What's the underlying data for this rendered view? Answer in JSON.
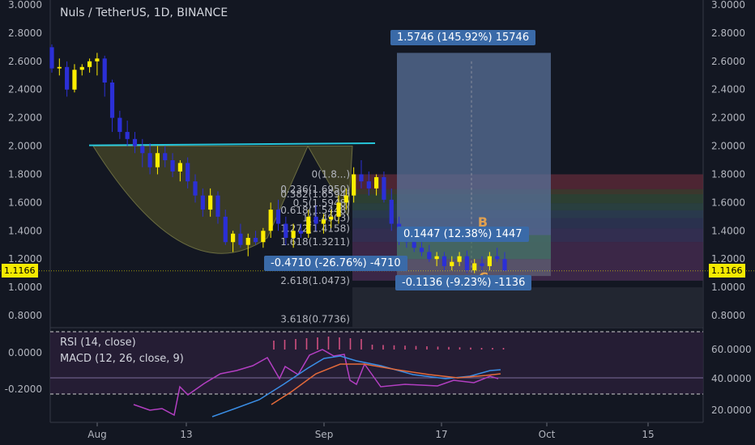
{
  "header": {
    "title": "Nuls / TetherUS, 1D, BINANCE"
  },
  "indicators": {
    "rsi_label": "RSI (14, close)",
    "macd_label": "MACD (12, 26, close, 9)"
  },
  "price_tag": "1.1166",
  "measure_boxes": {
    "top": "1.5746 (145.92%) 15746",
    "mid": "0.1447 (12.38%) 1447",
    "left": "-0.4710 (-26.76%) -4710",
    "bottom": "-0.1136 (-9.23%) -1136"
  },
  "pattern_labels": {
    "b": "B",
    "c": "C"
  },
  "chart_data": {
    "type": "candlestick",
    "title": "Nuls / TetherUS, 1D, BINANCE",
    "ylim": [
      0.7,
      3.0
    ],
    "y_ticks": [
      "3.0000",
      "2.8000",
      "2.6000",
      "2.4000",
      "2.2000",
      "2.0000",
      "1.8000",
      "1.6000",
      "1.4000",
      "1.2000",
      "1.0000",
      "0.8000"
    ],
    "x_ticks": [
      "Aug",
      "13",
      "Sep",
      "17",
      "Oct",
      "15"
    ],
    "last_price": 1.1166,
    "candles": [
      [
        2.7,
        2.72,
        2.52,
        2.55
      ],
      [
        2.55,
        2.62,
        2.5,
        2.56
      ],
      [
        2.56,
        2.6,
        2.35,
        2.4
      ],
      [
        2.4,
        2.58,
        2.38,
        2.54
      ],
      [
        2.54,
        2.58,
        2.5,
        2.56
      ],
      [
        2.56,
        2.62,
        2.52,
        2.6
      ],
      [
        2.6,
        2.66,
        2.5,
        2.62
      ],
      [
        2.62,
        2.64,
        2.35,
        2.45
      ],
      [
        2.45,
        2.47,
        2.1,
        2.2
      ],
      [
        2.2,
        2.25,
        2.05,
        2.1
      ],
      [
        2.1,
        2.18,
        2.0,
        2.05
      ],
      [
        2.05,
        2.1,
        1.95,
        2.0
      ],
      [
        2.0,
        2.05,
        1.85,
        1.95
      ],
      [
        1.95,
        2.02,
        1.8,
        1.85
      ],
      [
        1.85,
        2.0,
        1.8,
        1.95
      ],
      [
        1.95,
        2.0,
        1.85,
        1.9
      ],
      [
        1.9,
        1.95,
        1.78,
        1.82
      ],
      [
        1.82,
        1.9,
        1.75,
        1.88
      ],
      [
        1.88,
        1.92,
        1.7,
        1.75
      ],
      [
        1.75,
        1.8,
        1.6,
        1.65
      ],
      [
        1.65,
        1.7,
        1.5,
        1.55
      ],
      [
        1.55,
        1.7,
        1.5,
        1.65
      ],
      [
        1.65,
        1.68,
        1.45,
        1.5
      ],
      [
        1.5,
        1.55,
        1.3,
        1.32
      ],
      [
        1.32,
        1.4,
        1.25,
        1.38
      ],
      [
        1.38,
        1.45,
        1.28,
        1.3
      ],
      [
        1.3,
        1.38,
        1.22,
        1.35
      ],
      [
        1.35,
        1.4,
        1.3,
        1.32
      ],
      [
        1.32,
        1.42,
        1.28,
        1.4
      ],
      [
        1.4,
        1.6,
        1.35,
        1.55
      ],
      [
        1.55,
        1.62,
        1.4,
        1.45
      ],
      [
        1.45,
        1.5,
        1.3,
        1.35
      ],
      [
        1.35,
        1.45,
        1.28,
        1.4
      ],
      [
        1.4,
        1.45,
        1.35,
        1.38
      ],
      [
        1.38,
        1.55,
        1.35,
        1.5
      ],
      [
        1.5,
        1.58,
        1.4,
        1.45
      ],
      [
        1.45,
        1.52,
        1.38,
        1.48
      ],
      [
        1.48,
        1.55,
        1.42,
        1.5
      ],
      [
        1.5,
        1.65,
        1.45,
        1.6
      ],
      [
        1.6,
        1.7,
        1.55,
        1.65
      ],
      [
        1.65,
        1.85,
        1.6,
        1.8
      ],
      [
        1.8,
        1.9,
        1.7,
        1.75
      ],
      [
        1.75,
        1.82,
        1.65,
        1.7
      ],
      [
        1.7,
        1.8,
        1.65,
        1.78
      ],
      [
        1.78,
        1.82,
        1.6,
        1.62
      ],
      [
        1.62,
        1.7,
        1.4,
        1.45
      ],
      [
        1.45,
        1.5,
        1.3,
        1.35
      ],
      [
        1.35,
        1.4,
        1.28,
        1.32
      ],
      [
        1.32,
        1.35,
        1.25,
        1.28
      ],
      [
        1.28,
        1.32,
        1.22,
        1.25
      ],
      [
        1.25,
        1.3,
        1.18,
        1.2
      ],
      [
        1.2,
        1.25,
        1.15,
        1.22
      ],
      [
        1.22,
        1.25,
        1.12,
        1.15
      ],
      [
        1.15,
        1.22,
        1.12,
        1.18
      ],
      [
        1.18,
        1.25,
        1.15,
        1.22
      ],
      [
        1.22,
        1.26,
        1.1,
        1.12
      ],
      [
        1.12,
        1.2,
        1.1,
        1.17
      ],
      [
        1.17,
        1.22,
        1.12,
        1.15
      ],
      [
        1.15,
        1.25,
        1.12,
        1.22
      ],
      [
        1.22,
        1.28,
        1.18,
        1.2
      ],
      [
        1.2,
        1.25,
        1.12,
        1.1166
      ]
    ],
    "resistance_line": 2.02,
    "fibonacci": [
      {
        "label": "0(1.8...)",
        "value": 1.8
      },
      {
        "label": "0.236(1.6950)",
        "value": 1.695
      },
      {
        "label": "0.382(1.6594)",
        "value": 1.659
      },
      {
        "label": "0.5(1.5948)",
        "value": 1.595
      },
      {
        "label": "0.618(1.5448)",
        "value": 1.545
      },
      {
        "label": "1(1.4903)",
        "value": 1.49
      },
      {
        "label": "1.272(1.4158)",
        "value": 1.416
      },
      {
        "label": "1.618(1.3211)",
        "value": 1.321
      },
      {
        "label": "2.618(1.0473)",
        "value": 1.047
      },
      {
        "label": "3.618(0.7736)",
        "value": 0.774
      }
    ],
    "rsi": {
      "ylim": [
        20,
        70
      ],
      "ticks": [
        "60.0000",
        "40.0000",
        "20.0000"
      ]
    },
    "macd": {
      "ylim": [
        -0.3,
        0.1
      ],
      "ticks": [
        "0.0000",
        "-0.2000"
      ]
    }
  },
  "colors": {
    "up": "#ffee00",
    "down": "#2b2fd6",
    "resistance": "#26c6da",
    "box": "#3a6aa8",
    "bg": "#131722"
  }
}
